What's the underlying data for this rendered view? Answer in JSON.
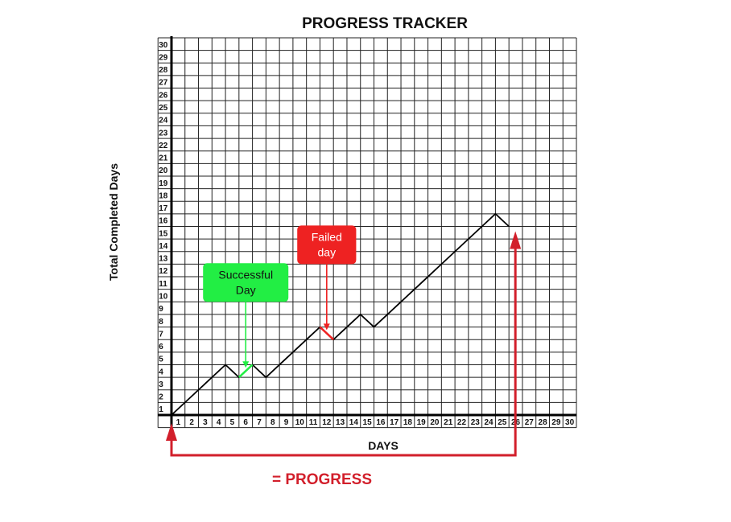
{
  "chart_data": {
    "type": "line",
    "title": "PROGRESS TRACKER",
    "xlabel": "DAYS",
    "ylabel": "Total Completed Days",
    "xlim": [
      0,
      30
    ],
    "ylim": [
      0,
      30
    ],
    "x_ticks": [
      1,
      2,
      3,
      4,
      5,
      6,
      7,
      8,
      9,
      10,
      11,
      12,
      13,
      14,
      15,
      16,
      17,
      18,
      19,
      20,
      21,
      22,
      23,
      24,
      25,
      26,
      27,
      28,
      29,
      30
    ],
    "y_ticks": [
      1,
      2,
      3,
      4,
      5,
      6,
      7,
      8,
      9,
      10,
      11,
      12,
      13,
      14,
      15,
      16,
      17,
      18,
      19,
      20,
      21,
      22,
      23,
      24,
      25,
      26,
      27,
      28,
      29,
      30
    ],
    "grid": true,
    "series": [
      {
        "x": [
          0,
          1,
          2,
          3,
          4,
          5,
          6,
          7,
          8,
          9,
          10,
          11,
          12,
          13,
          14,
          15,
          16,
          17,
          18,
          19,
          20,
          21,
          22,
          23,
          24,
          25
        ],
        "y": [
          0,
          1,
          2,
          3,
          4,
          3,
          4,
          3,
          4,
          5,
          6,
          7,
          6,
          7,
          8,
          7,
          8,
          9,
          10,
          11,
          12,
          13,
          14,
          15,
          16,
          15
        ],
        "color": "#000000"
      }
    ],
    "annotations": [
      {
        "text_lines": [
          "Successful",
          "Day"
        ],
        "x": 5.5,
        "fill": "#22ee44",
        "highlight_segment": [
          5,
          6
        ],
        "highlight_color": "#22ee44"
      },
      {
        "text_lines": [
          "Failed",
          "day"
        ],
        "x": 11.5,
        "fill": "#ee2222",
        "highlight_segment": [
          11,
          12
        ],
        "highlight_color": "#ee2222"
      }
    ],
    "progress_label": "= PROGRESS",
    "progress_color": "#d21f2b"
  }
}
